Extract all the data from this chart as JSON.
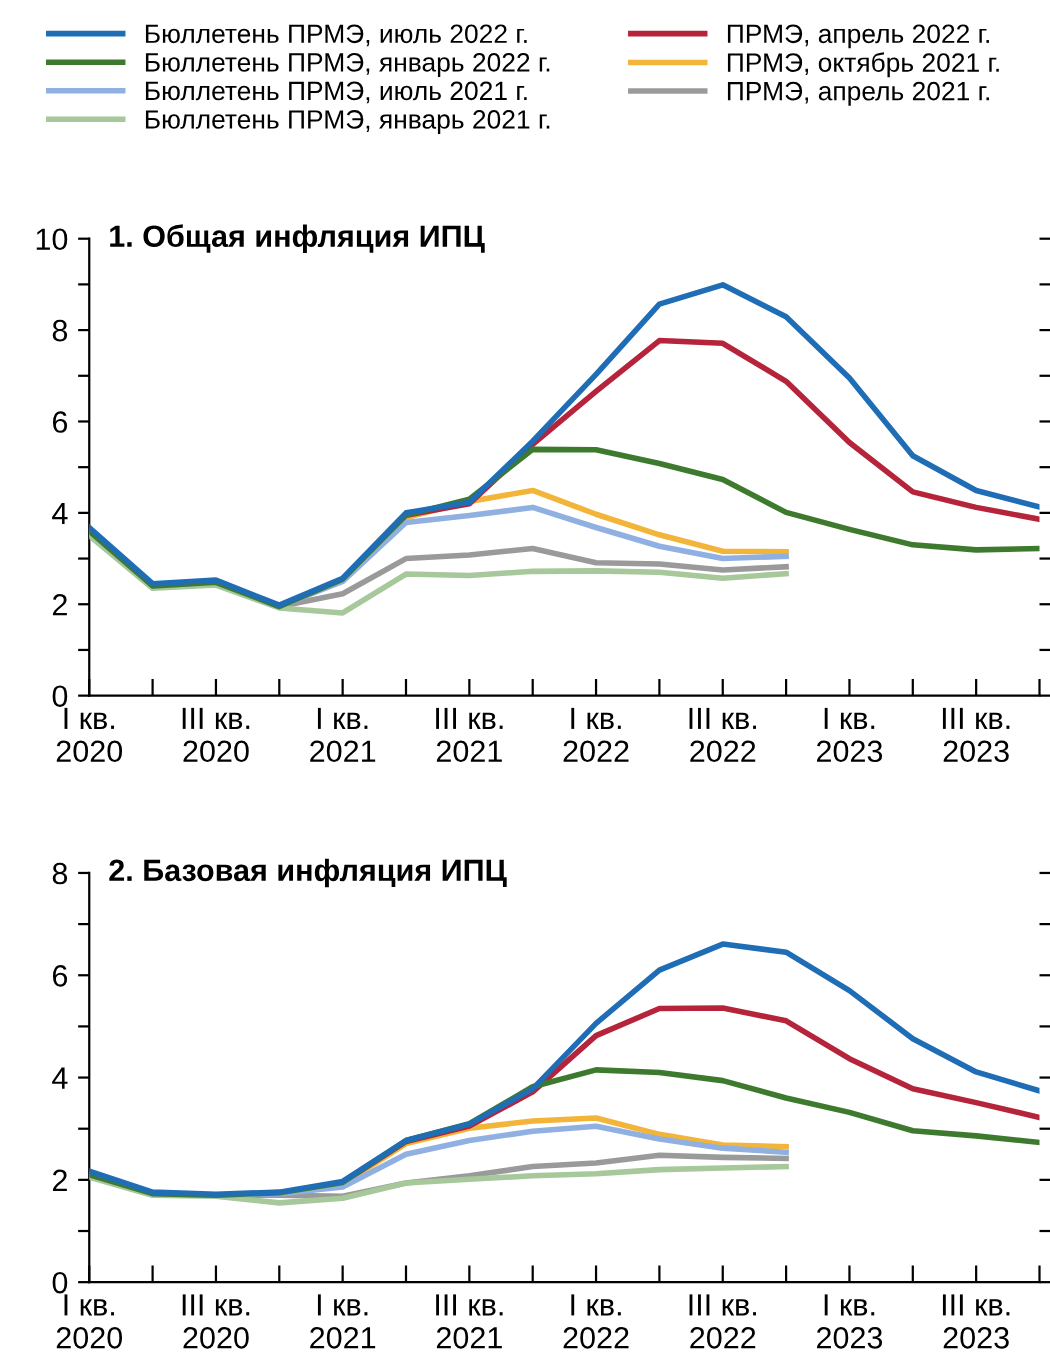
{
  "chart_data": [
    {
      "type": "line",
      "title": "1. Общая инфляция ИПЦ",
      "legend": "top",
      "categories": [
        "I кв.\n2020",
        null,
        "III кв.\n2020",
        null,
        "I кв.\n2021",
        null,
        "III кв.\n2021",
        null,
        "I кв.\n2022",
        null,
        "III кв.\n2022",
        null,
        "I кв.\n2023",
        null,
        "III кв.\n2023",
        null
      ],
      "ylim": [
        0,
        10
      ],
      "yticks": [
        0,
        {
          "value": 1,
          "label": null
        },
        2,
        {
          "value": 3,
          "label": null
        },
        4,
        {
          "value": 5,
          "label": null
        },
        6,
        {
          "value": 7,
          "label": null
        },
        8,
        {
          "value": 9,
          "label": null
        },
        10
      ],
      "grid": false,
      "marker": "none",
      "line_style": "solid",
      "series": [
        {
          "name": "Бюллетень ПРМЭ, июль 2022 г.",
          "color": "#1f6db5",
          "values": [
            3.68,
            2.45,
            2.53,
            1.98,
            2.57,
            4.0,
            4.23,
            5.57,
            7.03,
            8.57,
            8.99,
            8.29,
            6.95,
            5.25,
            4.49,
            4.13
          ]
        },
        {
          "name": "Бюллетень ПРМЭ, январь 2022 г.",
          "color": "#3e7a2e",
          "values": [
            3.6,
            2.4,
            2.48,
            1.95,
            2.55,
            3.95,
            4.3,
            5.39,
            5.38,
            5.08,
            4.73,
            4.01,
            3.64,
            3.3,
            3.19,
            3.22
          ]
        },
        {
          "name": "Бюллетень ПРМЭ, июль 2021 г.",
          "color": "#8fb0e0",
          "values": [
            3.6,
            2.4,
            2.48,
            1.95,
            2.5,
            3.79,
            3.94,
            4.12,
            3.68,
            3.27,
            3.0,
            3.05,
            null,
            null,
            null,
            null
          ]
        },
        {
          "name": "Бюллетень ПРМЭ, январь 2021 г.",
          "color": "#a6c89a",
          "values": [
            3.5,
            2.35,
            2.42,
            1.92,
            1.81,
            2.66,
            2.63,
            2.72,
            2.73,
            2.7,
            2.57,
            2.67,
            null,
            null,
            null,
            null
          ]
        },
        {
          "name": "ПРМЭ, апрель 2022 г.",
          "color": "#b5243a",
          "values": [
            null,
            null,
            null,
            null,
            2.55,
            3.95,
            4.2,
            5.5,
            6.66,
            7.77,
            7.71,
            6.88,
            5.54,
            4.46,
            4.12,
            3.86
          ]
        },
        {
          "name": "ПРМЭ, октябрь 2021 г.",
          "color": "#f2b53a",
          "values": [
            null,
            null,
            null,
            null,
            2.55,
            3.9,
            4.25,
            4.49,
            3.97,
            3.52,
            3.16,
            3.15,
            null,
            null,
            null,
            null
          ]
        },
        {
          "name": "ПРМЭ, апрель 2021 г.",
          "color": "#9a9a9a",
          "values": [
            3.55,
            2.38,
            2.45,
            1.95,
            2.23,
            3.0,
            3.08,
            3.22,
            2.91,
            2.88,
            2.75,
            2.82,
            null,
            null,
            null,
            null
          ]
        }
      ]
    },
    {
      "type": "line",
      "title": "2. Базовая инфляция ИПЦ",
      "legend": false,
      "categories": [
        "I кв.\n2020",
        null,
        "III кв.\n2020",
        null,
        "I кв.\n2021",
        null,
        "III кв.\n2021",
        null,
        "I кв.\n2022",
        null,
        "III кв.\n2022",
        null,
        "I кв.\n2023",
        null,
        "III кв.\n2023",
        null
      ],
      "ylim": [
        0,
        8
      ],
      "yticks": [
        0,
        {
          "value": 1,
          "label": null
        },
        2,
        {
          "value": 3,
          "label": null
        },
        4,
        {
          "value": 5,
          "label": null
        },
        6,
        {
          "value": 7,
          "label": null
        },
        8
      ],
      "grid": false,
      "marker": "none",
      "line_style": "solid",
      "series": [
        {
          "color": "#1f6db5",
          "values": [
            2.17,
            1.76,
            1.72,
            1.76,
            1.97,
            2.77,
            3.09,
            3.78,
            5.06,
            6.1,
            6.61,
            6.45,
            5.7,
            4.76,
            4.11,
            3.74
          ]
        },
        {
          "color": "#3e7a2e",
          "values": [
            2.1,
            1.73,
            1.7,
            1.75,
            1.95,
            2.77,
            3.1,
            3.82,
            4.15,
            4.1,
            3.94,
            3.6,
            3.32,
            2.96,
            2.86,
            2.73
          ]
        },
        {
          "color": "#8fb0e0",
          "values": [
            2.1,
            1.73,
            1.7,
            1.73,
            1.86,
            2.5,
            2.77,
            2.95,
            3.05,
            2.8,
            2.62,
            2.54,
            null,
            null,
            null,
            null
          ]
        },
        {
          "color": "#a6c89a",
          "values": [
            2.05,
            1.7,
            1.68,
            1.55,
            1.64,
            1.94,
            2.01,
            2.08,
            2.12,
            2.2,
            2.23,
            2.26,
            null,
            null,
            null,
            null
          ]
        },
        {
          "color": "#b5243a",
          "values": [
            null,
            null,
            null,
            null,
            1.95,
            2.75,
            3.05,
            3.72,
            4.82,
            5.35,
            5.36,
            5.11,
            4.37,
            3.78,
            3.51,
            3.22
          ]
        },
        {
          "color": "#f2b53a",
          "values": [
            null,
            null,
            null,
            null,
            1.92,
            2.71,
            3.01,
            3.15,
            3.21,
            2.89,
            2.68,
            2.65,
            null,
            null,
            null,
            null
          ]
        },
        {
          "color": "#9a9a9a",
          "values": [
            2.1,
            1.72,
            1.7,
            1.7,
            1.68,
            1.94,
            2.08,
            2.26,
            2.33,
            2.48,
            2.44,
            2.42,
            null,
            null,
            null,
            null
          ]
        }
      ]
    }
  ]
}
